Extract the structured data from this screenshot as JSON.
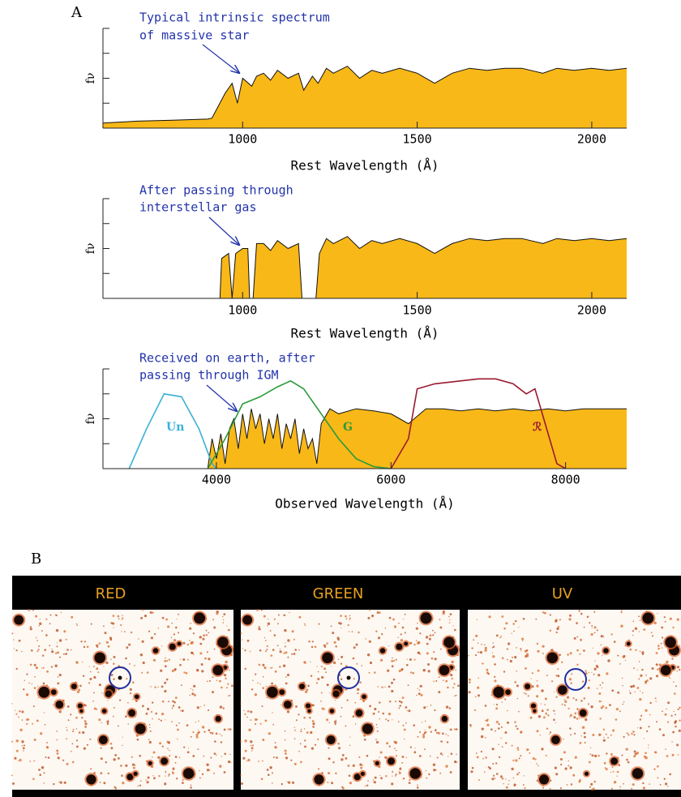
{
  "panel_a_label": "A",
  "chart_data": [
    {
      "type": "area",
      "ylabel": "fν",
      "xlabel": "Rest Wavelength (Å)",
      "annotation": [
        "Typical intrinsic spectrum",
        "of massive star"
      ],
      "xlim": [
        600,
        2100
      ],
      "xticks": [
        1000,
        1500,
        2000
      ],
      "ylim": [
        0,
        1
      ],
      "yticks": [
        0,
        0.25,
        0.5,
        0.75,
        1
      ],
      "color": "#f8b818",
      "x": [
        600,
        700,
        800,
        900,
        912,
        950,
        970,
        985,
        1000,
        1026,
        1040,
        1060,
        1080,
        1100,
        1130,
        1160,
        1175,
        1200,
        1216,
        1240,
        1260,
        1300,
        1335,
        1370,
        1400,
        1450,
        1500,
        1550,
        1600,
        1650,
        1700,
        1750,
        1800,
        1860,
        1900,
        1950,
        2000,
        2050,
        2100
      ],
      "values": [
        0.05,
        0.07,
        0.08,
        0.09,
        0.1,
        0.35,
        0.45,
        0.25,
        0.5,
        0.42,
        0.52,
        0.55,
        0.48,
        0.58,
        0.5,
        0.55,
        0.38,
        0.52,
        0.45,
        0.6,
        0.55,
        0.62,
        0.5,
        0.58,
        0.55,
        0.6,
        0.55,
        0.45,
        0.55,
        0.6,
        0.58,
        0.6,
        0.6,
        0.55,
        0.6,
        0.58,
        0.6,
        0.58,
        0.6
      ]
    },
    {
      "type": "area",
      "ylabel": "fν",
      "xlabel": "Rest Wavelength (Å)",
      "annotation": [
        "After passing through",
        "interstellar gas"
      ],
      "xlim": [
        600,
        2100
      ],
      "xticks": [
        1000,
        1500,
        2000
      ],
      "ylim": [
        0,
        1
      ],
      "yticks": [
        0,
        0.25,
        0.5,
        0.75,
        1
      ],
      "color": "#f8b818",
      "x": [
        600,
        900,
        935,
        940,
        960,
        970,
        980,
        1000,
        1015,
        1020,
        1030,
        1040,
        1060,
        1080,
        1100,
        1130,
        1160,
        1170,
        1210,
        1220,
        1240,
        1260,
        1300,
        1335,
        1370,
        1400,
        1450,
        1500,
        1550,
        1600,
        1650,
        1700,
        1750,
        1800,
        1860,
        1900,
        1950,
        2000,
        2050,
        2100
      ],
      "values": [
        0,
        0,
        0,
        0.4,
        0.45,
        0,
        0.45,
        0.5,
        0.5,
        0,
        0,
        0.55,
        0.55,
        0.48,
        0.58,
        0.5,
        0.55,
        0,
        0,
        0.45,
        0.6,
        0.55,
        0.62,
        0.5,
        0.58,
        0.55,
        0.6,
        0.55,
        0.45,
        0.55,
        0.6,
        0.58,
        0.6,
        0.6,
        0.55,
        0.6,
        0.58,
        0.6,
        0.58,
        0.6
      ]
    },
    {
      "type": "area",
      "ylabel": "fν",
      "xlabel": "Observed Wavelength (Å)",
      "annotation": [
        "Received on earth, after",
        "passing through IGM"
      ],
      "xlim": [
        2700,
        8700
      ],
      "xticks": [
        4000,
        6000,
        8000
      ],
      "ylim": [
        0,
        1
      ],
      "yticks": [
        0,
        0.25,
        0.5,
        0.75,
        1
      ],
      "color": "#f8b818",
      "x": [
        2700,
        3900,
        3950,
        4000,
        4050,
        4100,
        4150,
        4200,
        4250,
        4300,
        4350,
        4400,
        4450,
        4500,
        4550,
        4600,
        4650,
        4700,
        4750,
        4800,
        4850,
        4900,
        4950,
        5000,
        5050,
        5100,
        5150,
        5200,
        5300,
        5400,
        5600,
        5800,
        6000,
        6200,
        6400,
        6600,
        6800,
        7000,
        7200,
        7400,
        7600,
        7800,
        8000,
        8200,
        8400,
        8700
      ],
      "values": [
        0,
        0,
        0.3,
        0.1,
        0.35,
        0.05,
        0.4,
        0.5,
        0.2,
        0.55,
        0.3,
        0.6,
        0.4,
        0.55,
        0.25,
        0.5,
        0.3,
        0.55,
        0.2,
        0.45,
        0.3,
        0.5,
        0.15,
        0.4,
        0.2,
        0.3,
        0.05,
        0.45,
        0.6,
        0.55,
        0.6,
        0.58,
        0.55,
        0.45,
        0.6,
        0.6,
        0.58,
        0.6,
        0.58,
        0.6,
        0.58,
        0.6,
        0.58,
        0.6,
        0.6,
        0.6
      ],
      "series": [
        {
          "name": "Un",
          "color": "#3ab0d8",
          "x": [
            3000,
            3200,
            3400,
            3600,
            3800,
            3950,
            4000
          ],
          "values": [
            0,
            0.4,
            0.75,
            0.72,
            0.4,
            0.05,
            0
          ]
        },
        {
          "name": "G",
          "color": "#2a9a3a",
          "x": [
            3900,
            4100,
            4300,
            4500,
            4700,
            4850,
            5000,
            5200,
            5400,
            5600,
            5800,
            6000
          ],
          "values": [
            0,
            0.3,
            0.65,
            0.72,
            0.82,
            0.88,
            0.8,
            0.55,
            0.3,
            0.1,
            0.02,
            0
          ]
        },
        {
          "name": "ℛ",
          "color": "#9a1a30",
          "x": [
            6000,
            6200,
            6300,
            6500,
            7000,
            7200,
            7400,
            7550,
            7650,
            7750,
            7900,
            8000
          ],
          "values": [
            0,
            0.3,
            0.8,
            0.85,
            0.9,
            0.9,
            0.85,
            0.75,
            0.8,
            0.5,
            0.05,
            0
          ]
        }
      ]
    }
  ],
  "panel_b": {
    "label": "B",
    "images": [
      {
        "title": "RED"
      },
      {
        "title": "GREEN"
      },
      {
        "title": "UV"
      }
    ]
  }
}
